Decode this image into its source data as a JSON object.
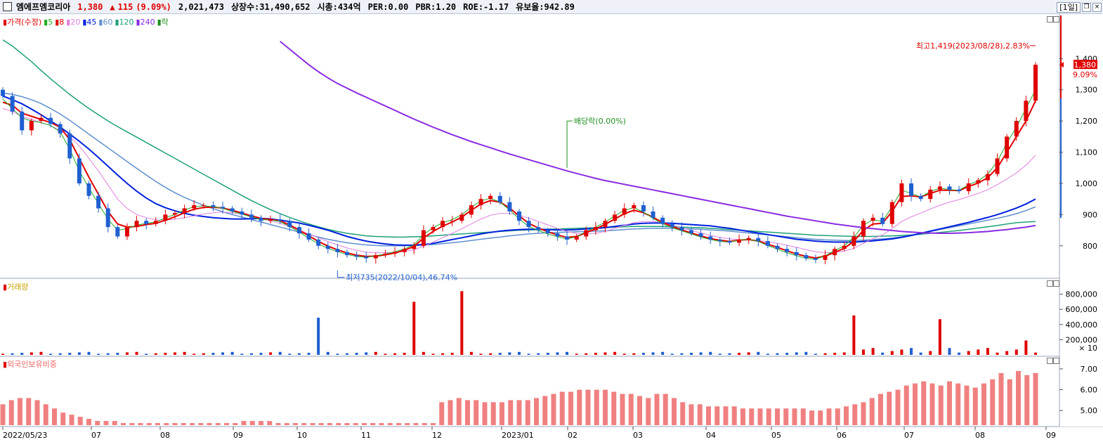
{
  "header": {
    "stock_name": "엠에프엠코리아",
    "price": "1,380",
    "change_arrow": "▲",
    "change": "115",
    "change_pct": "(9.09%)",
    "volume": "2,021,473",
    "listed_shares": "상장수:31,490,652",
    "market_cap": "시총:434억",
    "per": "PER:0.00",
    "pbr": "PBR:1.20",
    "roe": "ROE:-1.17",
    "turnover": "유보율:942.89",
    "period": "[1일]"
  },
  "price_legend": [
    {
      "label": "가격(수정)",
      "color": "#e00000"
    },
    {
      "label": "5",
      "color": "#22aa22"
    },
    {
      "label": "8",
      "color": "#e00000"
    },
    {
      "label": "20",
      "color": "#e080e0"
    },
    {
      "label": "45",
      "color": "#0020dd"
    },
    {
      "label": "60",
      "color": "#5f8fcf"
    },
    {
      "label": "120",
      "color": "#1fa07a"
    },
    {
      "label": "240",
      "color": "#8a2be2"
    },
    {
      "label": "락",
      "color": "#1f8f1f"
    }
  ],
  "volume_legend": {
    "label": "거래량",
    "color": "#c8a000"
  },
  "foreign_legend": {
    "label": "외국인보유비중",
    "color": "#ee6666"
  },
  "annotations": {
    "high": "최고1,419(2023/08/28),2.83%",
    "low": "최저735(2022/10/04),46.74%",
    "dividend": "배당락(0.00%)",
    "current_price": "1,380",
    "current_pct": "9.09%",
    "volume_multiplier": "× 10"
  },
  "colors": {
    "up": "#e00000",
    "down": "#1f5fd0",
    "foreign_bar": "#f08080"
  },
  "chart_data": [
    {
      "type": "candlestick",
      "title": "가격(수정)",
      "x_ticks": [
        "2022/05/23",
        "07",
        "08",
        "09",
        "10",
        "11",
        "12",
        "2023/01",
        "02",
        "03",
        "04",
        "05",
        "06",
        "07",
        "08",
        "09"
      ],
      "y_ticks": [
        800,
        900,
        1000,
        1100,
        1200,
        1300,
        1400
      ],
      "ylim": [
        705,
        1520
      ],
      "grid": false,
      "close": [
        1280,
        1230,
        1170,
        1200,
        1210,
        1190,
        1160,
        1080,
        1000,
        960,
        920,
        860,
        830,
        860,
        880,
        870,
        880,
        900,
        905,
        920,
        930,
        930,
        925,
        920,
        910,
        900,
        890,
        880,
        885,
        880,
        860,
        840,
        820,
        800,
        790,
        780,
        770,
        765,
        760,
        770,
        775,
        780,
        790,
        800,
        850,
        860,
        880,
        880,
        900,
        930,
        950,
        960,
        940,
        910,
        880,
        860,
        850,
        840,
        830,
        820,
        830,
        850,
        860,
        880,
        900,
        920,
        930,
        910,
        890,
        870,
        860,
        850,
        840,
        830,
        820,
        815,
        810,
        820,
        825,
        815,
        800,
        790,
        780,
        770,
        760,
        755,
        770,
        790,
        800,
        830,
        880,
        890,
        870,
        940,
        1000,
        960,
        950,
        980,
        990,
        980,
        975,
        1000,
        1010,
        1030,
        1080,
        1150,
        1200,
        1265,
        1380
      ],
      "ma5": [
        1270,
        1240,
        1210,
        1200,
        1195,
        1185,
        1165,
        1110,
        1040,
        985,
        935,
        885,
        850,
        855,
        866,
        872,
        876,
        890,
        900,
        915,
        925,
        928,
        925,
        920,
        910,
        902,
        892,
        884,
        883,
        878,
        862,
        844,
        824,
        806,
        792,
        781,
        772,
        766,
        763,
        768,
        774,
        781,
        790,
        803,
        836,
        858,
        874,
        884,
        900,
        924,
        944,
        952,
        940,
        915,
        886,
        862,
        849,
        838,
        829,
        822,
        829,
        846,
        860,
        876,
        896,
        914,
        922,
        908,
        888,
        870,
        858,
        848,
        838,
        828,
        820,
        814,
        812,
        818,
        821,
        814,
        801,
        789,
        778,
        768,
        760,
        757,
        768,
        785,
        800,
        828,
        866,
        884,
        878,
        926,
        978,
        968,
        956,
        974,
        985,
        980,
        978,
        996,
        1008,
        1030,
        1070,
        1130,
        1180,
        1240,
        1300
      ],
      "ma8": [
        1260,
        1250,
        1225,
        1215,
        1205,
        1195,
        1180,
        1140,
        1080,
        1020,
        965,
        910,
        870,
        860,
        862,
        868,
        872,
        882,
        893,
        906,
        917,
        923,
        924,
        921,
        914,
        905,
        896,
        888,
        884,
        880,
        867,
        850,
        832,
        814,
        799,
        787,
        777,
        770,
        766,
        767,
        771,
        777,
        786,
        798,
        825,
        846,
        863,
        876,
        892,
        914,
        934,
        945,
        940,
        921,
        896,
        872,
        857,
        845,
        835,
        827,
        830,
        842,
        854,
        869,
        886,
        903,
        914,
        906,
        891,
        875,
        862,
        851,
        841,
        832,
        823,
        818,
        814,
        818,
        820,
        815,
        805,
        795,
        784,
        774,
        766,
        761,
        767,
        779,
        792,
        815,
        850,
        870,
        872,
        910,
        958,
        960,
        957,
        968,
        978,
        978,
        977,
        990,
        1001,
        1018,
        1050,
        1100,
        1150,
        1200,
        1265
      ],
      "ma20": [
        1240,
        1230,
        1215,
        1205,
        1195,
        1185,
        1170,
        1150,
        1120,
        1080,
        1040,
        995,
        950,
        920,
        900,
        890,
        883,
        882,
        885,
        890,
        896,
        902,
        906,
        908,
        906,
        902,
        895,
        888,
        880,
        872,
        862,
        850,
        838,
        826,
        814,
        803,
        793,
        786,
        780,
        778,
        778,
        779,
        782,
        787,
        799,
        812,
        826,
        840,
        855,
        870,
        886,
        898,
        904,
        904,
        898,
        889,
        878,
        867,
        856,
        846,
        840,
        838,
        840,
        846,
        856,
        866,
        874,
        878,
        878,
        874,
        867,
        858,
        849,
        841,
        833,
        827,
        822,
        820,
        819,
        817,
        813,
        808,
        802,
        795,
        788,
        781,
        778,
        779,
        783,
        792,
        808,
        823,
        835,
        855,
        878,
        893,
        905,
        918,
        930,
        940,
        948,
        958,
        968,
        980,
        996,
        1014,
        1034,
        1058,
        1090
      ],
      "ma45": [
        1280,
        1268,
        1255,
        1238,
        1220,
        1200,
        1180,
        1158,
        1135,
        1110,
        1083,
        1055,
        1027,
        1000,
        975,
        953,
        935,
        922,
        912,
        904,
        898,
        894,
        890,
        888,
        886,
        886,
        887,
        888,
        886,
        882,
        878,
        873,
        866,
        858,
        850,
        840,
        830,
        822,
        815,
        810,
        806,
        803,
        802,
        802,
        804,
        808,
        814,
        820,
        826,
        832,
        838,
        843,
        847,
        850,
        852,
        853,
        853,
        852,
        851,
        851,
        852,
        854,
        856,
        858,
        862,
        866,
        870,
        872,
        873,
        873,
        872,
        870,
        868,
        866,
        864,
        860,
        856,
        851,
        846,
        841,
        836,
        831,
        826,
        821,
        818,
        815,
        813,
        812,
        812,
        812,
        814,
        816,
        819,
        822,
        827,
        833,
        840,
        847,
        854,
        861,
        868,
        875,
        883,
        891,
        900,
        910,
        921,
        934,
        950
      ],
      "ma60": [
        1290,
        1285,
        1278,
        1268,
        1256,
        1240,
        1222,
        1202,
        1180,
        1158,
        1136,
        1114,
        1092,
        1070,
        1048,
        1027,
        1006,
        987,
        970,
        955,
        942,
        930,
        919,
        909,
        900,
        892,
        884,
        876,
        868,
        860,
        852,
        844,
        836,
        828,
        821,
        815,
        810,
        806,
        803,
        801,
        800,
        800,
        800,
        801,
        802,
        804,
        807,
        810,
        813,
        817,
        821,
        825,
        828,
        832,
        835,
        838,
        840,
        842,
        843,
        844,
        845,
        846,
        847,
        848,
        850,
        852,
        854,
        855,
        856,
        856,
        856,
        855,
        854,
        853,
        851,
        849,
        847,
        844,
        841,
        838,
        835,
        832,
        829,
        826,
        823,
        821,
        819,
        818,
        817,
        817,
        818,
        820,
        822,
        825,
        829,
        834,
        840,
        846,
        852,
        858,
        864,
        870,
        876,
        882,
        888,
        895,
        903,
        913,
        925
      ],
      "ma120": [
        1460,
        1440,
        1415,
        1390,
        1362,
        1335,
        1310,
        1285,
        1262,
        1240,
        1220,
        1200,
        1182,
        1165,
        1148,
        1131,
        1114,
        1097,
        1080,
        1063,
        1046,
        1029,
        1012,
        995,
        978,
        961,
        945,
        930,
        916,
        903,
        891,
        880,
        870,
        861,
        853,
        846,
        840,
        836,
        832,
        830,
        829,
        828,
        828,
        829,
        830,
        832,
        834,
        836,
        838,
        840,
        842,
        844,
        846,
        848,
        850,
        851,
        852,
        853,
        854,
        855,
        856,
        857,
        858,
        859,
        860,
        861,
        862,
        862,
        862,
        862,
        861,
        860,
        859,
        858,
        856,
        854,
        852,
        850,
        848,
        846,
        844,
        842,
        840,
        838,
        836,
        834,
        833,
        832,
        831,
        830,
        830,
        830,
        831,
        832,
        833,
        835,
        837,
        840,
        843,
        846,
        849,
        853,
        857,
        861,
        865,
        870,
        874,
        876,
        878
      ]
    },
    {
      "type": "bar",
      "title": "거래량",
      "y_ticks": [
        200000,
        400000,
        600000,
        800000
      ],
      "multiplier": "× 10",
      "spikes": [
        {
          "x": "2022/10",
          "value": 490000
        },
        {
          "x": "2022/11",
          "value": 700000
        },
        {
          "x": "2022/12",
          "value": 840000
        },
        {
          "x": "2023/06",
          "value": 520000
        },
        {
          "x": "2023/07",
          "value": 470000
        },
        {
          "x": "2023/08",
          "value": 190000
        }
      ]
    },
    {
      "type": "bar",
      "title": "외국인보유비중",
      "y_ticks": [
        5.0,
        6.0,
        7.0
      ],
      "ylim": [
        4.3,
        7.3
      ],
      "values": [
        5.3,
        5.5,
        5.6,
        5.6,
        5.5,
        5.3,
        5.1,
        4.9,
        4.8,
        4.7,
        4.6,
        4.5,
        4.5,
        4.5,
        4.4,
        4.4,
        4.4,
        4.4,
        4.4,
        4.4,
        4.4,
        4.4,
        4.4,
        4.4,
        4.4,
        4.4,
        4.4,
        4.4,
        4.5,
        4.5,
        4.5,
        4.5,
        4.4,
        4.4,
        4.4,
        4.4,
        4.4,
        4.4,
        4.4,
        4.4,
        4.4,
        4.4,
        4.4,
        4.4,
        4.4,
        4.4,
        4.4,
        4.4,
        4.4,
        4.4,
        4.4,
        5.4,
        5.5,
        5.6,
        5.5,
        5.5,
        5.4,
        5.4,
        5.4,
        5.5,
        5.5,
        5.5,
        5.6,
        5.7,
        5.8,
        5.9,
        5.9,
        6.0,
        6.0,
        6.0,
        6.0,
        5.9,
        5.8,
        5.8,
        5.7,
        5.6,
        5.8,
        5.8,
        5.6,
        5.4,
        5.3,
        5.3,
        5.2,
        5.2,
        5.2,
        5.2,
        5.1,
        5.1,
        5.1,
        5.1,
        5.1,
        5.1,
        5.1,
        5.1,
        5.0,
        5.0,
        5.1,
        5.1,
        5.2,
        5.3,
        5.4,
        5.6,
        5.8,
        5.9,
        6.0,
        6.2,
        6.3,
        6.4,
        6.3,
        6.2,
        6.4,
        6.3,
        6.2,
        6.1,
        6.3,
        6.5,
        6.8,
        6.5,
        6.9,
        6.7,
        6.8
      ]
    }
  ]
}
